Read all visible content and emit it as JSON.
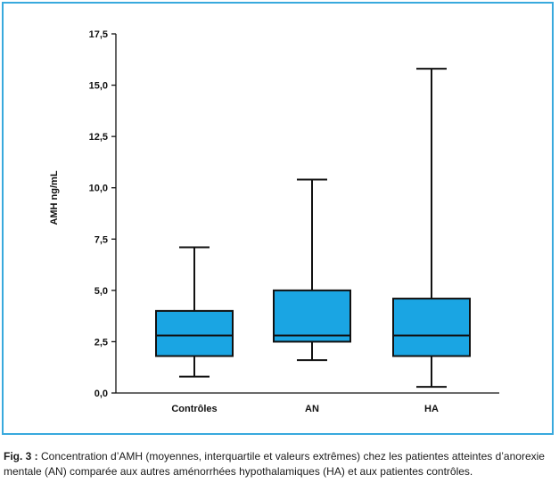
{
  "figure": {
    "caption_lead": "Fig. 3 :",
    "caption_text": " Concentration d’AMH (moyennes, interquartile et valeurs extrêmes) chez les patientes atteintes d’anorexie mentale (AN) comparée aux autres aménorrhées hypothalamiques (HA) et aux patientes contrôles."
  },
  "chart_data": {
    "type": "box",
    "title": "",
    "xlabel": "",
    "ylabel": "AMH ng/mL",
    "ylim": [
      0,
      17.5
    ],
    "yticks": [
      "0,0",
      "2,5",
      "5,0",
      "7,5",
      "10,0",
      "12,5",
      "15,0",
      "17,5"
    ],
    "categories": [
      "Contrôles",
      "AN",
      "HA"
    ],
    "boxes": [
      {
        "category": "Contrôles",
        "min": 0.8,
        "q1": 1.8,
        "median": 2.8,
        "q3": 4.0,
        "max": 7.1
      },
      {
        "category": "AN",
        "min": 1.6,
        "q1": 2.5,
        "median": 2.8,
        "q3": 5.0,
        "max": 10.4
      },
      {
        "category": "HA",
        "min": 0.3,
        "q1": 1.8,
        "median": 2.8,
        "q3": 4.6,
        "max": 15.8
      }
    ],
    "box_color": "#1aa5e3",
    "grid": false
  }
}
